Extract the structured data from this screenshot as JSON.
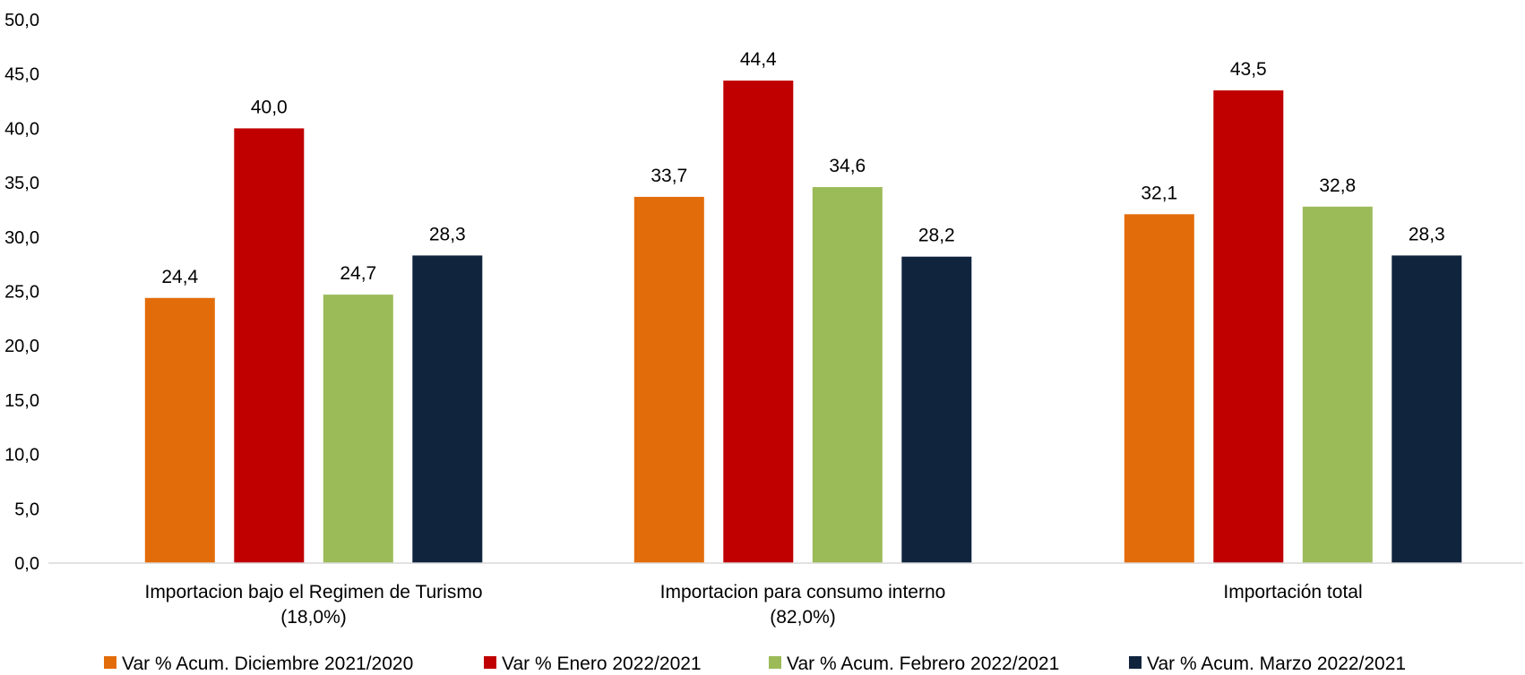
{
  "chart_data": {
    "type": "bar",
    "categories": [
      [
        "Importacion bajo el Regimen de Turismo",
        "(18,0%)"
      ],
      [
        "Importacion para consumo interno",
        "(82,0%)"
      ],
      [
        "Importación total"
      ]
    ],
    "series": [
      {
        "name": "Var % Acum. Diciembre 2021/2020",
        "color": "#E36C0A",
        "values": [
          24.4,
          33.7,
          32.1
        ],
        "labels": [
          "24,4",
          "33,7",
          "32,1"
        ]
      },
      {
        "name": "Var % Enero 2022/2021",
        "color": "#C00000",
        "values": [
          40.0,
          44.4,
          43.5
        ],
        "labels": [
          "40,0",
          "44,4",
          "43,5"
        ]
      },
      {
        "name": "Var % Acum. Febrero 2022/2021",
        "color": "#9BBB59",
        "values": [
          24.7,
          34.6,
          32.8
        ],
        "labels": [
          "24,7",
          "34,6",
          "32,8"
        ]
      },
      {
        "name": "Var % Acum. Marzo 2022/2021",
        "color": "#10243E",
        "values": [
          28.3,
          28.2,
          28.3
        ],
        "labels": [
          "28,3",
          "28,2",
          "28,3"
        ]
      }
    ],
    "ylim": [
      0,
      50
    ],
    "yticks": [
      "0,0",
      "5,0",
      "10,0",
      "15,0",
      "20,0",
      "25,0",
      "30,0",
      "35,0",
      "40,0",
      "45,0",
      "50,0"
    ],
    "grid": false,
    "legend_position": "bottom",
    "title": "",
    "xlabel": "",
    "ylabel": ""
  }
}
